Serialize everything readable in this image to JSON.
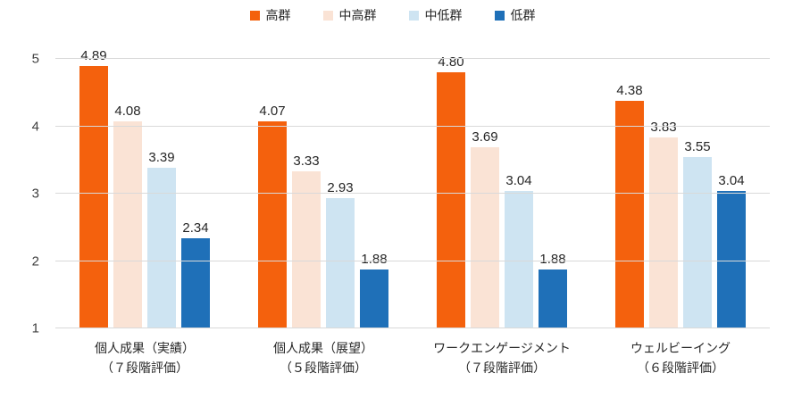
{
  "chart_data": {
    "type": "bar",
    "title": "",
    "ylim": [
      1,
      5
    ],
    "yticks": [
      1,
      2,
      3,
      4,
      5
    ],
    "grid": true,
    "legend_position": "top",
    "value_label_decimals": 2,
    "categories": [
      {
        "lines": [
          "個人成果（実績）",
          "（７段階評価）"
        ]
      },
      {
        "lines": [
          "個人成果（展望）",
          "（５段階評価）"
        ]
      },
      {
        "lines": [
          "ワークエンゲージメント",
          "（７段階評価）"
        ]
      },
      {
        "lines": [
          "ウェルビーイング",
          "（６段階評価）"
        ]
      }
    ],
    "series": [
      {
        "key": "high",
        "name": "高群",
        "color": "#F4610D",
        "values": [
          4.89,
          4.07,
          4.8,
          4.38
        ]
      },
      {
        "key": "mid-high",
        "name": "中高群",
        "color": "#FAE3D5",
        "values": [
          4.08,
          3.33,
          3.69,
          3.83
        ]
      },
      {
        "key": "mid-low",
        "name": "中低群",
        "color": "#CEE4F2",
        "values": [
          3.39,
          2.93,
          3.04,
          3.55
        ]
      },
      {
        "key": "low",
        "name": "低群",
        "color": "#1F70B8",
        "values": [
          2.34,
          1.88,
          1.88,
          3.04
        ]
      }
    ]
  },
  "colors": {
    "grid": "#D9D9D9",
    "value_text": "#262626",
    "axis_text": "#404040"
  }
}
